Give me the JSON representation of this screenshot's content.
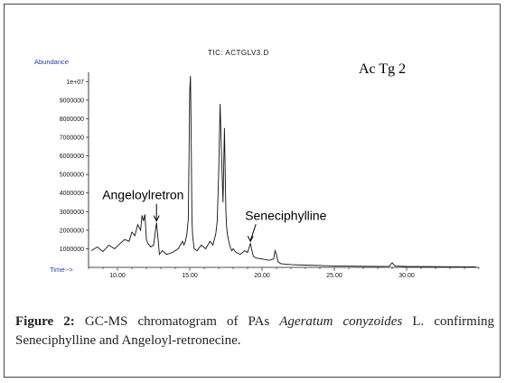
{
  "figure": {
    "tic_title": "TIC: ACTGLV3.D",
    "sample_label": "Ac  Tg  2",
    "caption": {
      "label": "Figure 2",
      "sep": ":",
      "text_pre": " GC-MS chromatogram of PAs ",
      "species": "Ageratum conyzoides",
      "text_post": " L. confirming Seneciphylline and Angeloyl-retronecine."
    }
  },
  "chart_data": {
    "type": "line",
    "title": "TIC: ACTGLV3.D",
    "xlabel": "Time-->",
    "ylabel": "Abundance",
    "xlim": [
      8.0,
      35.0
    ],
    "ylim": [
      0,
      10500000
    ],
    "x_ticks": [
      10,
      15,
      20,
      25,
      30
    ],
    "x_tick_labels": [
      "10.00",
      "15.00",
      "20.00",
      "25.00",
      "30.00"
    ],
    "y_ticks": [
      1000000,
      2000000,
      3000000,
      4000000,
      5000000,
      6000000,
      7000000,
      8000000,
      9000000,
      10000000
    ],
    "y_tick_labels": [
      "1000000",
      "2000000",
      "3000000",
      "4000000",
      "5000000",
      "6000000",
      "7000000",
      "8000000",
      "9000000",
      "1e+07"
    ],
    "series": [
      {
        "x": [
          8.2,
          8.6,
          9.0,
          9.4,
          9.8,
          10.2,
          10.5,
          10.8,
          11.0,
          11.2,
          11.4,
          11.6,
          11.7,
          11.8,
          11.9,
          12.0,
          12.1,
          12.3,
          12.5,
          12.7,
          12.8,
          12.9,
          13.1,
          13.4,
          13.8,
          14.2,
          14.5,
          14.6,
          14.7,
          14.8,
          14.9,
          15.0,
          15.05,
          15.1,
          15.15,
          15.2,
          15.3,
          15.5,
          15.8,
          16.1,
          16.4,
          16.6,
          16.8,
          16.9,
          17.0,
          17.1,
          17.2,
          17.3,
          17.4,
          17.5,
          17.55,
          17.6,
          17.7,
          17.8,
          17.9,
          18.0,
          18.2,
          18.5,
          18.8,
          19.0,
          19.2,
          19.3,
          19.4,
          19.6,
          20.0,
          20.5,
          20.8,
          20.9,
          21.0,
          21.1,
          21.3,
          22.0,
          23.0,
          24.0,
          25.0,
          26.0,
          27.0,
          28.0,
          28.8,
          29.0,
          29.2,
          30.0,
          31.0,
          32.0,
          33.0,
          34.0,
          34.8
        ],
        "y": [
          900000,
          1100000,
          850000,
          1200000,
          1000000,
          1300000,
          1500000,
          1400000,
          1900000,
          1700000,
          2300000,
          2000000,
          2800000,
          2500000,
          2850000,
          1500000,
          1300000,
          1100000,
          1200000,
          2400000,
          1600000,
          700000,
          900000,
          700000,
          800000,
          1000000,
          1400000,
          1200000,
          1400000,
          1800000,
          2600000,
          9500000,
          10300000,
          7000000,
          2600000,
          1700000,
          1000000,
          900000,
          1200000,
          1000000,
          1400000,
          1200000,
          1800000,
          2500000,
          5000000,
          8800000,
          6000000,
          3500000,
          7500000,
          3000000,
          2200000,
          1800000,
          1400000,
          1100000,
          900000,
          1000000,
          800000,
          700000,
          900000,
          800000,
          1300000,
          900000,
          600000,
          500000,
          450000,
          380000,
          450000,
          900000,
          700000,
          300000,
          200000,
          150000,
          120000,
          100000,
          80000,
          70000,
          60000,
          55000,
          60000,
          250000,
          70000,
          50000,
          45000,
          40000,
          35000,
          30000,
          30000
        ]
      }
    ],
    "annotations": [
      {
        "text": "Angeloylretron",
        "x": 12.7,
        "y": 2400000
      },
      {
        "text": "Seneciphylline",
        "x": 19.2,
        "y": 1300000
      }
    ],
    "grid": false
  }
}
